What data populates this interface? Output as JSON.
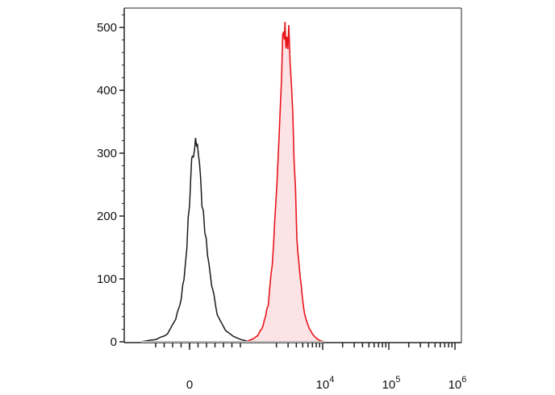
{
  "chart_data": {
    "type": "area",
    "title": "",
    "xlabel": "",
    "ylabel": "",
    "x_scale": "biexponential",
    "ylim": [
      0,
      520
    ],
    "y_ticks": [
      {
        "value": 0,
        "label": "0"
      },
      {
        "value": 100,
        "label": "100"
      },
      {
        "value": 200,
        "label": "200"
      },
      {
        "value": 300,
        "label": "300"
      },
      {
        "value": 400,
        "label": "400"
      },
      {
        "value": 500,
        "label": "500"
      }
    ],
    "x_ticks": [
      {
        "value": 0,
        "base": "0",
        "exp": ""
      },
      {
        "value": 10000,
        "base": "10",
        "exp": "4"
      },
      {
        "value": 100000,
        "base": "10",
        "exp": "5"
      },
      {
        "value": 1000000,
        "base": "10",
        "exp": "6"
      }
    ],
    "colors": {
      "control": "#1a1a1a",
      "stained": "#e8141b",
      "stained_fill": "#fce3e6"
    },
    "series": [
      {
        "key": "control",
        "values": [
          [
            -2000,
            0
          ],
          [
            -1200,
            4
          ],
          [
            -800,
            12
          ],
          [
            -500,
            35
          ],
          [
            -300,
            70
          ],
          [
            -150,
            120
          ],
          [
            -50,
            190
          ],
          [
            50,
            260
          ],
          [
            100,
            300
          ],
          [
            180,
            315
          ],
          [
            250,
            318
          ],
          [
            320,
            300
          ],
          [
            400,
            250
          ],
          [
            500,
            200
          ],
          [
            650,
            140
          ],
          [
            800,
            90
          ],
          [
            1000,
            45
          ],
          [
            1300,
            18
          ],
          [
            1700,
            8
          ],
          [
            2300,
            3
          ],
          [
            3000,
            0
          ]
        ]
      },
      {
        "key": "stained",
        "values": [
          [
            2600,
            0
          ],
          [
            3300,
            4
          ],
          [
            4000,
            10
          ],
          [
            4800,
            25
          ],
          [
            5800,
            60
          ],
          [
            7000,
            150
          ],
          [
            8200,
            300
          ],
          [
            9300,
            440
          ],
          [
            10000,
            500
          ],
          [
            10500,
            505
          ],
          [
            11200,
            470
          ],
          [
            12000,
            490
          ],
          [
            13200,
            410
          ],
          [
            14500,
            300
          ],
          [
            16000,
            170
          ],
          [
            18000,
            100
          ],
          [
            21000,
            45
          ],
          [
            25000,
            20
          ],
          [
            30000,
            8
          ],
          [
            36000,
            2
          ],
          [
            42000,
            0
          ]
        ]
      }
    ]
  }
}
